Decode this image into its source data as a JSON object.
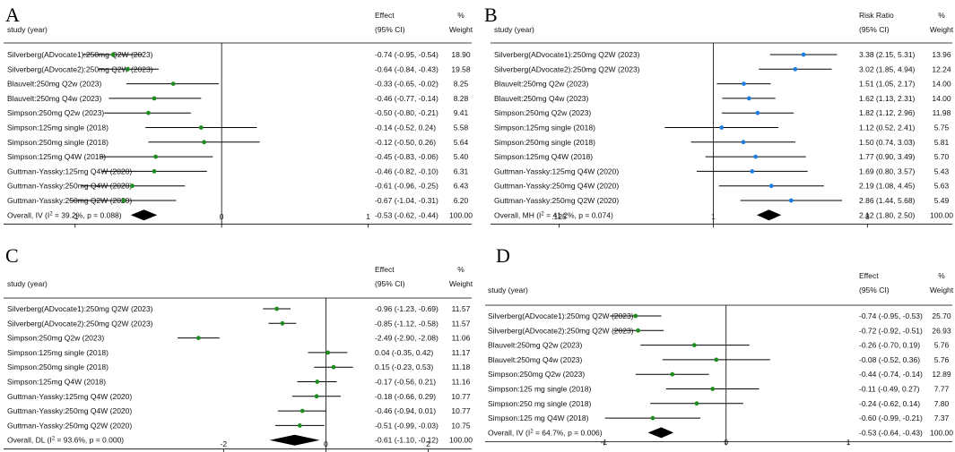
{
  "colors": {
    "green": "#1e8c1e",
    "blue": "#1f7fe0",
    "line": "#000000",
    "text": "#111111"
  },
  "chart_data": [
    {
      "type": "forest",
      "panel_letter": "A",
      "marker": "green",
      "xscale": "linear",
      "xlim": [
        -1.5,
        1.7
      ],
      "null_value": 0,
      "ticks": [
        {
          "v": -1,
          "label": "-1"
        },
        {
          "v": 0,
          "label": "0"
        },
        {
          "v": 1,
          "label": "1"
        }
      ],
      "header": {
        "study": "study (year)",
        "effect1": "Effect",
        "effect2": "(95% CI)",
        "w1": "%",
        "w2": "Weight"
      },
      "studies": [
        {
          "name": "Silverberg(ADvocate1):250mg Q2W (2023)",
          "est": -0.74,
          "lo": -0.95,
          "hi": -0.54,
          "ci": "-0.74 (-0.95, -0.54)",
          "weight": "18.90"
        },
        {
          "name": "Silverberg(ADvocate2):250mg Q2W (2023)",
          "est": -0.64,
          "lo": -0.84,
          "hi": -0.43,
          "ci": "-0.64 (-0.84, -0.43)",
          "weight": "19.58"
        },
        {
          "name": "Blauvelt:250mg  Q2w (2023)",
          "est": -0.33,
          "lo": -0.65,
          "hi": -0.02,
          "ci": "-0.33 (-0.65, -0.02)",
          "weight": "8.25"
        },
        {
          "name": "Blauvelt:250mg  Q4w (2023)",
          "est": -0.46,
          "lo": -0.77,
          "hi": -0.14,
          "ci": "-0.46 (-0.77, -0.14)",
          "weight": "8.28"
        },
        {
          "name": "Simpson:250mg  Q2w (2023)",
          "est": -0.5,
          "lo": -0.8,
          "hi": -0.21,
          "ci": "-0.50 (-0.80, -0.21)",
          "weight": "9.41"
        },
        {
          "name": "Simpson:125mg single (2018)",
          "est": -0.14,
          "lo": -0.52,
          "hi": 0.24,
          "ci": "-0.14 (-0.52, 0.24)",
          "weight": "5.58"
        },
        {
          "name": "Simpson:250mg single (2018)",
          "est": -0.12,
          "lo": -0.5,
          "hi": 0.26,
          "ci": "-0.12 (-0.50, 0.26)",
          "weight": "5.64"
        },
        {
          "name": "Simpson:125mg Q4W (2018)",
          "est": -0.45,
          "lo": -0.83,
          "hi": -0.06,
          "ci": "-0.45 (-0.83, -0.06)",
          "weight": "5.40"
        },
        {
          "name": "Guttman-Yassky:125mg Q4W (2020)",
          "est": -0.46,
          "lo": -0.82,
          "hi": -0.1,
          "ci": "-0.46 (-0.82, -0.10)",
          "weight": "6.31"
        },
        {
          "name": "Guttman-Yassky:250mg Q4W (2020)",
          "est": -0.61,
          "lo": -0.96,
          "hi": -0.25,
          "ci": "-0.61 (-0.96, -0.25)",
          "weight": "6.43"
        },
        {
          "name": "Guttman-Yassky:250mg Q2W (2020)",
          "est": -0.67,
          "lo": -1.04,
          "hi": -0.31,
          "ci": "-0.67 (-1.04, -0.31)",
          "weight": "6.20"
        }
      ],
      "overall": {
        "prefix": "Overall, IV (I",
        "sup": "2",
        "suffix": " = 39.2%, p = 0.088)",
        "est": -0.53,
        "lo": -0.62,
        "hi": -0.44,
        "ci": "-0.53 (-0.62, -0.44)",
        "weight": "100.00"
      }
    },
    {
      "type": "forest",
      "panel_letter": "B",
      "marker": "blue",
      "xscale": "log",
      "xlim": [
        0.045,
        19.5
      ],
      "null_value": 1,
      "ticks": [
        {
          "v": 0.125,
          "label": ".125"
        },
        {
          "v": 1,
          "label": "1"
        },
        {
          "v": 8,
          "label": "8"
        }
      ],
      "header": {
        "study": "study (year)",
        "effect1": "Risk Ratio",
        "effect2": "(95% CI)",
        "w1": "%",
        "w2": "Weight"
      },
      "studies": [
        {
          "name": "Silverberg(ADvocate1):250mg Q2W (2023)",
          "est": 3.38,
          "lo": 2.15,
          "hi": 5.31,
          "ci": "3.38 (2.15, 5.31)",
          "weight": "13.96"
        },
        {
          "name": "Silverberg(ADvocate2):250mg Q2W (2023)",
          "est": 3.02,
          "lo": 1.85,
          "hi": 4.94,
          "ci": "3.02 (1.85, 4.94)",
          "weight": "12.24"
        },
        {
          "name": "Blauvelt:250mg  Q2w (2023)",
          "est": 1.51,
          "lo": 1.05,
          "hi": 2.17,
          "ci": "1.51 (1.05, 2.17)",
          "weight": "14.00"
        },
        {
          "name": "Blauvelt:250mg  Q4w (2023)",
          "est": 1.62,
          "lo": 1.13,
          "hi": 2.31,
          "ci": "1.62 (1.13, 2.31)",
          "weight": "14.00"
        },
        {
          "name": "Simpson:250mg  Q2w (2023)",
          "est": 1.82,
          "lo": 1.12,
          "hi": 2.96,
          "ci": "1.82 (1.12, 2.96)",
          "weight": "11.98"
        },
        {
          "name": "Simpson:125mg single (2018)",
          "est": 1.12,
          "lo": 0.52,
          "hi": 2.41,
          "ci": "1.12 (0.52, 2.41)",
          "weight": "5.75"
        },
        {
          "name": "Simpson:250mg single (2018)",
          "est": 1.5,
          "lo": 0.74,
          "hi": 3.03,
          "ci": "1.50 (0.74, 3.03)",
          "weight": "5.81"
        },
        {
          "name": "Simpson:125mg Q4W (2018)",
          "est": 1.77,
          "lo": 0.9,
          "hi": 3.49,
          "ci": "1.77 (0.90, 3.49)",
          "weight": "5.70"
        },
        {
          "name": "Guttman-Yassky:125mg Q4W (2020)",
          "est": 1.69,
          "lo": 0.8,
          "hi": 3.57,
          "ci": "1.69 (0.80, 3.57)",
          "weight": "5.43"
        },
        {
          "name": "Guttman-Yassky:250mg Q4W (2020)",
          "est": 2.19,
          "lo": 1.08,
          "hi": 4.45,
          "ci": "2.19 (1.08, 4.45)",
          "weight": "5.63"
        },
        {
          "name": "Guttman-Yassky:250mg Q2W (2020)",
          "est": 2.86,
          "lo": 1.44,
          "hi": 5.68,
          "ci": "2.86 (1.44, 5.68)",
          "weight": "5.49"
        }
      ],
      "overall": {
        "prefix": "Overall, MH (I",
        "sup": "2",
        "suffix": " = 41.2%, p = 0.074)",
        "est": 2.12,
        "lo": 1.8,
        "hi": 2.5,
        "ci": "2.12 (1.80, 2.50)",
        "weight": "100.00"
      }
    },
    {
      "type": "forest",
      "panel_letter": "C",
      "marker": "green",
      "xscale": "linear",
      "xlim": [
        -6.3,
        2.85
      ],
      "null_value": 0,
      "ticks": [
        {
          "v": -2,
          "label": "-2"
        },
        {
          "v": 0,
          "label": "0"
        },
        {
          "v": 2,
          "label": "2"
        }
      ],
      "header": {
        "study": "study (year)",
        "effect1": "Effect",
        "effect2": "(95% CI)",
        "w1": "%",
        "w2": "Weight"
      },
      "studies": [
        {
          "name": "Silverberg(ADvocate1):250mg Q2W (2023)",
          "est": -0.96,
          "lo": -1.23,
          "hi": -0.69,
          "ci": "-0.96 (-1.23, -0.69)",
          "weight": "11.57"
        },
        {
          "name": "Silverberg(ADvocate2):250mg Q2W (2023)",
          "est": -0.85,
          "lo": -1.12,
          "hi": -0.58,
          "ci": "-0.85 (-1.12, -0.58)",
          "weight": "11.57"
        },
        {
          "name": "Simpson:250mg  Q2w (2023)",
          "est": -2.49,
          "lo": -2.9,
          "hi": -2.08,
          "ci": "-2.49 (-2.90, -2.08)",
          "weight": "11.06"
        },
        {
          "name": "Simpson:125mg single (2018)",
          "est": 0.04,
          "lo": -0.35,
          "hi": 0.42,
          "ci": "0.04 (-0.35, 0.42)",
          "weight": "11.17"
        },
        {
          "name": "Simpson:250mg single (2018)",
          "est": 0.15,
          "lo": -0.23,
          "hi": 0.53,
          "ci": "0.15 (-0.23, 0.53)",
          "weight": "11.18"
        },
        {
          "name": "Simpson:125mg Q4W (2018)",
          "est": -0.17,
          "lo": -0.56,
          "hi": 0.21,
          "ci": "-0.17 (-0.56, 0.21)",
          "weight": "11.16"
        },
        {
          "name": "Guttman-Yassky:125mg Q4W (2020)",
          "est": -0.18,
          "lo": -0.66,
          "hi": 0.29,
          "ci": "-0.18 (-0.66, 0.29)",
          "weight": "10.77"
        },
        {
          "name": "Guttman-Yassky:250mg Q4W (2020)",
          "est": -0.46,
          "lo": -0.94,
          "hi": 0.01,
          "ci": "-0.46 (-0.94, 0.01)",
          "weight": "10.77"
        },
        {
          "name": "Guttman-Yassky:250mg Q2W (2020)",
          "est": -0.51,
          "lo": -0.99,
          "hi": -0.03,
          "ci": "-0.51 (-0.99, -0.03)",
          "weight": "10.75"
        }
      ],
      "overall": {
        "prefix": "Overall, DL (I",
        "sup": "2",
        "suffix": " = 93.6%, p = 0.000)",
        "est": -0.61,
        "lo": -1.1,
        "hi": -0.12,
        "ci": "-0.61 (-1.10, -0.12)",
        "weight": "100.00"
      }
    },
    {
      "type": "forest",
      "panel_letter": "D",
      "marker": "green",
      "xscale": "linear",
      "xlim": [
        -2.0,
        1.85
      ],
      "null_value": 0,
      "ticks": [
        {
          "v": -1,
          "label": "-1"
        },
        {
          "v": 0,
          "label": "0"
        },
        {
          "v": 1,
          "label": "1"
        }
      ],
      "header": {
        "study": "study (year)",
        "effect1": "Effect",
        "effect2": "(95% CI)",
        "w1": "%",
        "w2": "Weight"
      },
      "studies": [
        {
          "name": "Silverberg(ADvocate1):250mg Q2W (2023)",
          "est": -0.74,
          "lo": -0.95,
          "hi": -0.53,
          "ci": "-0.74 (-0.95, -0.53)",
          "weight": "25.70"
        },
        {
          "name": "Silverberg(ADvocate2):250mg Q2W (2023)",
          "est": -0.72,
          "lo": -0.92,
          "hi": -0.51,
          "ci": "-0.72 (-0.92, -0.51)",
          "weight": "26.93"
        },
        {
          "name": "Blauvelt:250mg  Q2w (2023)",
          "est": -0.26,
          "lo": -0.7,
          "hi": 0.19,
          "ci": "-0.26 (-0.70, 0.19)",
          "weight": "5.76"
        },
        {
          "name": "Blauvelt:250mg  Q4w (2023)",
          "est": -0.08,
          "lo": -0.52,
          "hi": 0.36,
          "ci": "-0.08 (-0.52, 0.36)",
          "weight": "5.76"
        },
        {
          "name": "Simpson:250mg  Q2w (2023)",
          "est": -0.44,
          "lo": -0.74,
          "hi": -0.14,
          "ci": "-0.44 (-0.74, -0.14)",
          "weight": "12.89"
        },
        {
          "name": "Simpson:125 mg single (2018)",
          "est": -0.11,
          "lo": -0.49,
          "hi": 0.27,
          "ci": "-0.11 (-0.49, 0.27)",
          "weight": "7.77"
        },
        {
          "name": "Simpson:250 mg single (2018)",
          "est": -0.24,
          "lo": -0.62,
          "hi": 0.14,
          "ci": "-0.24 (-0.62, 0.14)",
          "weight": "7.80"
        },
        {
          "name": "Simpson:125 mg Q4W (2018)",
          "est": -0.6,
          "lo": -0.99,
          "hi": -0.21,
          "ci": "-0.60 (-0.99, -0.21)",
          "weight": "7.37"
        }
      ],
      "overall": {
        "prefix": "Overall, IV (I",
        "sup": "2",
        "suffix": " = 64.7%, p = 0.006)",
        "est": -0.53,
        "lo": -0.64,
        "hi": -0.43,
        "ci": "-0.53 (-0.64, -0.43)",
        "weight": "100.00"
      }
    }
  ]
}
